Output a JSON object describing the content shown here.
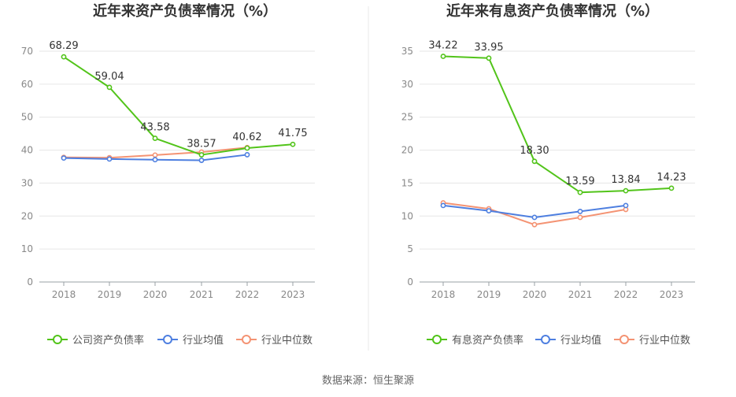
{
  "footer": {
    "source": "数据来源：恒生聚源"
  },
  "chart_data": [
    {
      "type": "line",
      "title": "近年来资产负债率情况（%）",
      "categories": [
        "2018",
        "2019",
        "2020",
        "2021",
        "2022",
        "2023"
      ],
      "ylim": [
        0,
        70
      ],
      "yticks": [
        0,
        10,
        20,
        30,
        40,
        50,
        60,
        70
      ],
      "grid": true,
      "legend_position": "bottom",
      "series": [
        {
          "name": "公司资产负债率",
          "color": "#52c41a",
          "values": [
            68.29,
            59.04,
            43.58,
            38.57,
            40.62,
            41.75
          ],
          "labels": [
            "68.29",
            "59.04",
            "43.58",
            "38.57",
            "40.62",
            "41.75"
          ]
        },
        {
          "name": "行业均值",
          "color": "#4e7fe0",
          "values": [
            37.6,
            37.3,
            37.1,
            36.9,
            38.6,
            null
          ]
        },
        {
          "name": "行业中位数",
          "color": "#f49373",
          "values": [
            37.8,
            37.7,
            38.5,
            39.4,
            40.8,
            null
          ]
        }
      ]
    },
    {
      "type": "line",
      "title": "近年来有息资产负债率情况（%）",
      "categories": [
        "2018",
        "2019",
        "2020",
        "2021",
        "2022",
        "2023"
      ],
      "ylim": [
        0,
        35
      ],
      "yticks": [
        0,
        5,
        10,
        15,
        20,
        25,
        30,
        35
      ],
      "grid": true,
      "legend_position": "bottom",
      "series": [
        {
          "name": "有息资产负债率",
          "color": "#52c41a",
          "values": [
            34.22,
            33.95,
            18.3,
            13.59,
            13.84,
            14.23
          ],
          "labels": [
            "34.22",
            "33.95",
            "18.30",
            "13.59",
            "13.84",
            "14.23"
          ]
        },
        {
          "name": "行业均值",
          "color": "#4e7fe0",
          "values": [
            11.6,
            10.8,
            9.8,
            10.7,
            11.6,
            null
          ]
        },
        {
          "name": "行业中位数",
          "color": "#f49373",
          "values": [
            12.0,
            11.1,
            8.7,
            9.8,
            11.0,
            null
          ]
        }
      ]
    }
  ]
}
